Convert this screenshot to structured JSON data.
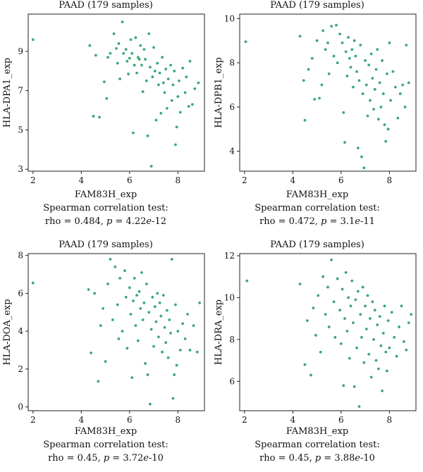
{
  "colors": {
    "point": "#3aa776",
    "axis": "#222222"
  },
  "chart_data": [
    {
      "type": "scatter",
      "title": "PAAD (179 samples)",
      "xlabel": "FAM83H_exp",
      "ylabel": "HLA-DPA1_exp",
      "caption_line1": "Spearman correlation test:",
      "caption_rho": "rho = 0.484, ",
      "caption_p_label": "p",
      "caption_p_eq": " = 4.22",
      "caption_p_e": "e",
      "caption_p_exp": "-12",
      "xlim": [
        1.8,
        9.1
      ],
      "ylim": [
        2.9,
        10.9
      ],
      "xticks": [
        2,
        4,
        6,
        8
      ],
      "yticks": [
        3,
        5,
        7,
        9
      ],
      "points": [
        [
          2.0,
          9.6
        ],
        [
          4.35,
          9.3
        ],
        [
          4.6,
          8.8
        ],
        [
          4.5,
          5.7
        ],
        [
          4.75,
          5.65
        ],
        [
          4.95,
          7.45
        ],
        [
          5.05,
          6.6
        ],
        [
          5.1,
          8.7
        ],
        [
          5.2,
          8.9
        ],
        [
          5.35,
          9.9
        ],
        [
          5.45,
          9.15
        ],
        [
          5.5,
          8.4
        ],
        [
          5.55,
          9.4
        ],
        [
          5.6,
          7.6
        ],
        [
          5.7,
          10.5
        ],
        [
          5.75,
          8.9
        ],
        [
          5.85,
          9.1
        ],
        [
          5.9,
          8.5
        ],
        [
          5.95,
          7.85
        ],
        [
          6.0,
          8.65
        ],
        [
          6.05,
          9.6
        ],
        [
          6.1,
          8.9
        ],
        [
          6.15,
          4.85
        ],
        [
          6.2,
          8.3
        ],
        [
          6.25,
          9.7
        ],
        [
          6.3,
          7.9
        ],
        [
          6.35,
          8.7
        ],
        [
          6.4,
          8.6
        ],
        [
          6.45,
          9.3
        ],
        [
          6.5,
          8.3
        ],
        [
          6.55,
          6.95
        ],
        [
          6.6,
          9.1
        ],
        [
          6.65,
          8.6
        ],
        [
          6.7,
          7.5
        ],
        [
          6.75,
          4.7
        ],
        [
          6.8,
          9.9
        ],
        [
          6.85,
          8.2
        ],
        [
          6.9,
          3.15
        ],
        [
          6.95,
          7.7
        ],
        [
          7.0,
          9.2
        ],
        [
          7.05,
          8.0
        ],
        [
          7.1,
          5.5
        ],
        [
          7.15,
          8.4
        ],
        [
          7.2,
          7.3
        ],
        [
          7.25,
          7.9
        ],
        [
          7.3,
          5.85
        ],
        [
          7.35,
          8.7
        ],
        [
          7.4,
          7.4
        ],
        [
          7.45,
          6.9
        ],
        [
          7.5,
          8.1
        ],
        [
          7.55,
          6.1
        ],
        [
          7.6,
          7.6
        ],
        [
          7.7,
          8.3
        ],
        [
          7.75,
          6.5
        ],
        [
          7.8,
          7.3
        ],
        [
          7.85,
          8.0
        ],
        [
          7.9,
          4.25
        ],
        [
          7.95,
          5.15
        ],
        [
          8.0,
          6.7
        ],
        [
          8.05,
          7.5
        ],
        [
          8.1,
          5.9
        ],
        [
          8.2,
          8.15
        ],
        [
          8.3,
          6.9
        ],
        [
          8.35,
          7.7
        ],
        [
          8.45,
          6.2
        ],
        [
          8.5,
          8.5
        ],
        [
          8.6,
          6.3
        ],
        [
          8.7,
          7.1
        ],
        [
          8.85,
          7.4
        ]
      ]
    },
    {
      "type": "scatter",
      "title": "PAAD (179 samples)",
      "xlabel": "FAM83H_exp",
      "ylabel": "HLA-DPB1_exp",
      "caption_line1": "Spearman correlation test:",
      "caption_rho": "rho = 0.472, ",
      "caption_p_label": "p",
      "caption_p_eq": " = 3.1",
      "caption_p_e": "e",
      "caption_p_exp": "-11",
      "xlim": [
        1.8,
        9.1
      ],
      "ylim": [
        3.1,
        10.2
      ],
      "xticks": [
        2,
        4,
        6,
        8
      ],
      "yticks": [
        4,
        6,
        8,
        10
      ],
      "points": [
        [
          2.05,
          8.95
        ],
        [
          4.3,
          9.2
        ],
        [
          4.45,
          7.2
        ],
        [
          4.5,
          5.4
        ],
        [
          4.65,
          7.7
        ],
        [
          4.8,
          8.2
        ],
        [
          4.9,
          6.35
        ],
        [
          5.0,
          9.0
        ],
        [
          5.1,
          6.4
        ],
        [
          5.2,
          7.0
        ],
        [
          5.25,
          9.45
        ],
        [
          5.35,
          8.6
        ],
        [
          5.45,
          8.9
        ],
        [
          5.5,
          7.5
        ],
        [
          5.6,
          9.65
        ],
        [
          5.7,
          8.3
        ],
        [
          5.8,
          9.7
        ],
        [
          5.85,
          8.0
        ],
        [
          5.95,
          9.3
        ],
        [
          6.05,
          8.9
        ],
        [
          6.1,
          5.75
        ],
        [
          6.15,
          4.4
        ],
        [
          6.2,
          8.5
        ],
        [
          6.25,
          7.4
        ],
        [
          6.3,
          9.15
        ],
        [
          6.35,
          8.2
        ],
        [
          6.4,
          7.8
        ],
        [
          6.45,
          8.6
        ],
        [
          6.5,
          6.9
        ],
        [
          6.55,
          9.0
        ],
        [
          6.6,
          8.3
        ],
        [
          6.65,
          7.6
        ],
        [
          6.7,
          4.15
        ],
        [
          6.75,
          7.2
        ],
        [
          6.8,
          8.8
        ],
        [
          6.85,
          3.75
        ],
        [
          6.9,
          6.6
        ],
        [
          6.95,
          3.25
        ],
        [
          7.0,
          8.1
        ],
        [
          7.05,
          7.0
        ],
        [
          7.1,
          5.6
        ],
        [
          7.15,
          7.9
        ],
        [
          7.2,
          6.3
        ],
        [
          7.25,
          8.4
        ],
        [
          7.3,
          7.3
        ],
        [
          7.35,
          5.9
        ],
        [
          7.4,
          6.8
        ],
        [
          7.45,
          7.7
        ],
        [
          7.5,
          8.6
        ],
        [
          7.55,
          5.45
        ],
        [
          7.6,
          7.1
        ],
        [
          7.65,
          6.0
        ],
        [
          7.7,
          8.1
        ],
        [
          7.75,
          6.6
        ],
        [
          7.8,
          5.2
        ],
        [
          7.85,
          4.45
        ],
        [
          7.9,
          7.5
        ],
        [
          7.95,
          5.0
        ],
        [
          8.0,
          8.9
        ],
        [
          8.05,
          6.3
        ],
        [
          8.15,
          7.6
        ],
        [
          8.25,
          6.9
        ],
        [
          8.35,
          5.5
        ],
        [
          8.45,
          6.6
        ],
        [
          8.55,
          7.0
        ],
        [
          8.65,
          6.0
        ],
        [
          8.7,
          8.8
        ],
        [
          8.8,
          7.1
        ]
      ]
    },
    {
      "type": "scatter",
      "title": "PAAD (179 samples)",
      "xlabel": "FAM83H_exp",
      "ylabel": "HLA-DOA_exp",
      "caption_line1": "Spearman correlation test:",
      "caption_rho": "rho = 0.45, ",
      "caption_p_label": "p",
      "caption_p_eq": " = 3.72",
      "caption_p_e": "e",
      "caption_p_exp": "-10",
      "xlim": [
        1.8,
        9.1
      ],
      "ylim": [
        -0.2,
        8.1
      ],
      "xticks": [
        2,
        4,
        6,
        8
      ],
      "yticks": [
        0,
        2,
        4,
        6,
        8
      ],
      "points": [
        [
          2.0,
          6.55
        ],
        [
          4.3,
          6.2
        ],
        [
          4.4,
          2.85
        ],
        [
          4.55,
          6.0
        ],
        [
          4.7,
          1.35
        ],
        [
          4.8,
          4.3
        ],
        [
          4.9,
          5.2
        ],
        [
          5.0,
          2.4
        ],
        [
          5.1,
          6.5
        ],
        [
          5.2,
          7.8
        ],
        [
          5.3,
          4.6
        ],
        [
          5.4,
          7.4
        ],
        [
          5.5,
          5.4
        ],
        [
          5.55,
          3.6
        ],
        [
          5.6,
          6.8
        ],
        [
          5.7,
          4.0
        ],
        [
          5.8,
          7.2
        ],
        [
          5.85,
          5.8
        ],
        [
          5.9,
          3.1
        ],
        [
          6.0,
          6.3
        ],
        [
          6.05,
          4.9
        ],
        [
          6.1,
          1.55
        ],
        [
          6.15,
          5.6
        ],
        [
          6.2,
          6.8
        ],
        [
          6.25,
          4.3
        ],
        [
          6.3,
          5.9
        ],
        [
          6.35,
          3.5
        ],
        [
          6.4,
          6.1
        ],
        [
          6.45,
          5.2
        ],
        [
          6.5,
          7.1
        ],
        [
          6.55,
          4.6
        ],
        [
          6.6,
          5.5
        ],
        [
          6.65,
          2.3
        ],
        [
          6.7,
          6.5
        ],
        [
          6.75,
          1.7
        ],
        [
          6.8,
          5.0
        ],
        [
          6.85,
          0.15
        ],
        [
          6.9,
          4.1
        ],
        [
          6.95,
          5.8
        ],
        [
          7.0,
          3.2
        ],
        [
          7.05,
          5.3
        ],
        [
          7.1,
          4.5
        ],
        [
          7.15,
          6.0
        ],
        [
          7.2,
          3.7
        ],
        [
          7.25,
          5.5
        ],
        [
          7.3,
          4.8
        ],
        [
          7.35,
          2.9
        ],
        [
          7.4,
          5.9
        ],
        [
          7.45,
          4.2
        ],
        [
          7.5,
          3.4
        ],
        [
          7.55,
          5.1
        ],
        [
          7.6,
          2.6
        ],
        [
          7.65,
          4.6
        ],
        [
          7.7,
          3.9
        ],
        [
          7.75,
          7.8
        ],
        [
          7.8,
          0.45
        ],
        [
          7.85,
          1.7
        ],
        [
          7.9,
          5.4
        ],
        [
          7.95,
          2.2
        ],
        [
          8.0,
          4.0
        ],
        [
          8.1,
          3.0
        ],
        [
          8.2,
          4.4
        ],
        [
          8.3,
          3.6
        ],
        [
          8.4,
          4.9
        ],
        [
          8.5,
          3.0
        ],
        [
          8.65,
          4.3
        ],
        [
          8.8,
          2.9
        ],
        [
          8.9,
          5.5
        ]
      ]
    },
    {
      "type": "scatter",
      "title": "PAAD (179 samples)",
      "xlabel": "FAM83H_exp",
      "ylabel": "HLA-DRA_exp",
      "caption_line1": "Spearman correlation test:",
      "caption_rho": "rho = 0.45, ",
      "caption_p_label": "p",
      "caption_p_eq": " = 3.88",
      "caption_p_e": "e",
      "caption_p_exp": "-10",
      "xlim": [
        1.8,
        9.1
      ],
      "ylim": [
        4.6,
        12.1
      ],
      "xticks": [
        2,
        4,
        6,
        8
      ],
      "yticks": [
        6,
        8,
        10,
        12
      ],
      "points": [
        [
          2.1,
          10.8
        ],
        [
          4.3,
          10.65
        ],
        [
          4.5,
          6.8
        ],
        [
          4.6,
          8.9
        ],
        [
          4.75,
          6.3
        ],
        [
          4.85,
          9.5
        ],
        [
          4.95,
          8.2
        ],
        [
          5.05,
          10.1
        ],
        [
          5.15,
          7.4
        ],
        [
          5.25,
          11.0
        ],
        [
          5.35,
          9.2
        ],
        [
          5.45,
          10.5
        ],
        [
          5.5,
          8.6
        ],
        [
          5.6,
          11.8
        ],
        [
          5.7,
          9.8
        ],
        [
          5.75,
          8.1
        ],
        [
          5.85,
          10.9
        ],
        [
          5.95,
          9.4
        ],
        [
          6.0,
          7.8
        ],
        [
          6.05,
          10.4
        ],
        [
          6.1,
          5.8
        ],
        [
          6.15,
          9.0
        ],
        [
          6.2,
          11.2
        ],
        [
          6.25,
          8.4
        ],
        [
          6.3,
          10.0
        ],
        [
          6.35,
          7.1
        ],
        [
          6.4,
          9.6
        ],
        [
          6.45,
          10.8
        ],
        [
          6.5,
          8.8
        ],
        [
          6.55,
          5.75
        ],
        [
          6.6,
          9.9
        ],
        [
          6.65,
          7.6
        ],
        [
          6.7,
          10.3
        ],
        [
          6.75,
          4.8
        ],
        [
          6.8,
          9.2
        ],
        [
          6.85,
          8.1
        ],
        [
          6.9,
          10.5
        ],
        [
          6.95,
          6.9
        ],
        [
          7.0,
          9.6
        ],
        [
          7.05,
          8.5
        ],
        [
          7.1,
          10.1
        ],
        [
          7.15,
          7.3
        ],
        [
          7.2,
          9.0
        ],
        [
          7.25,
          6.2
        ],
        [
          7.3,
          9.8
        ],
        [
          7.35,
          8.0
        ],
        [
          7.4,
          9.4
        ],
        [
          7.45,
          7.0
        ],
        [
          7.5,
          8.7
        ],
        [
          7.55,
          6.6
        ],
        [
          7.6,
          9.1
        ],
        [
          7.65,
          7.7
        ],
        [
          7.7,
          5.55
        ],
        [
          7.75,
          8.3
        ],
        [
          7.8,
          9.6
        ],
        [
          7.85,
          7.4
        ],
        [
          7.9,
          6.5
        ],
        [
          7.95,
          8.9
        ],
        [
          8.0,
          7.6
        ],
        [
          8.1,
          9.3
        ],
        [
          8.2,
          8.1
        ],
        [
          8.3,
          7.2
        ],
        [
          8.4,
          8.6
        ],
        [
          8.5,
          9.6
        ],
        [
          8.6,
          7.9
        ],
        [
          8.7,
          7.5
        ],
        [
          8.8,
          8.8
        ],
        [
          8.9,
          9.2
        ]
      ]
    }
  ]
}
